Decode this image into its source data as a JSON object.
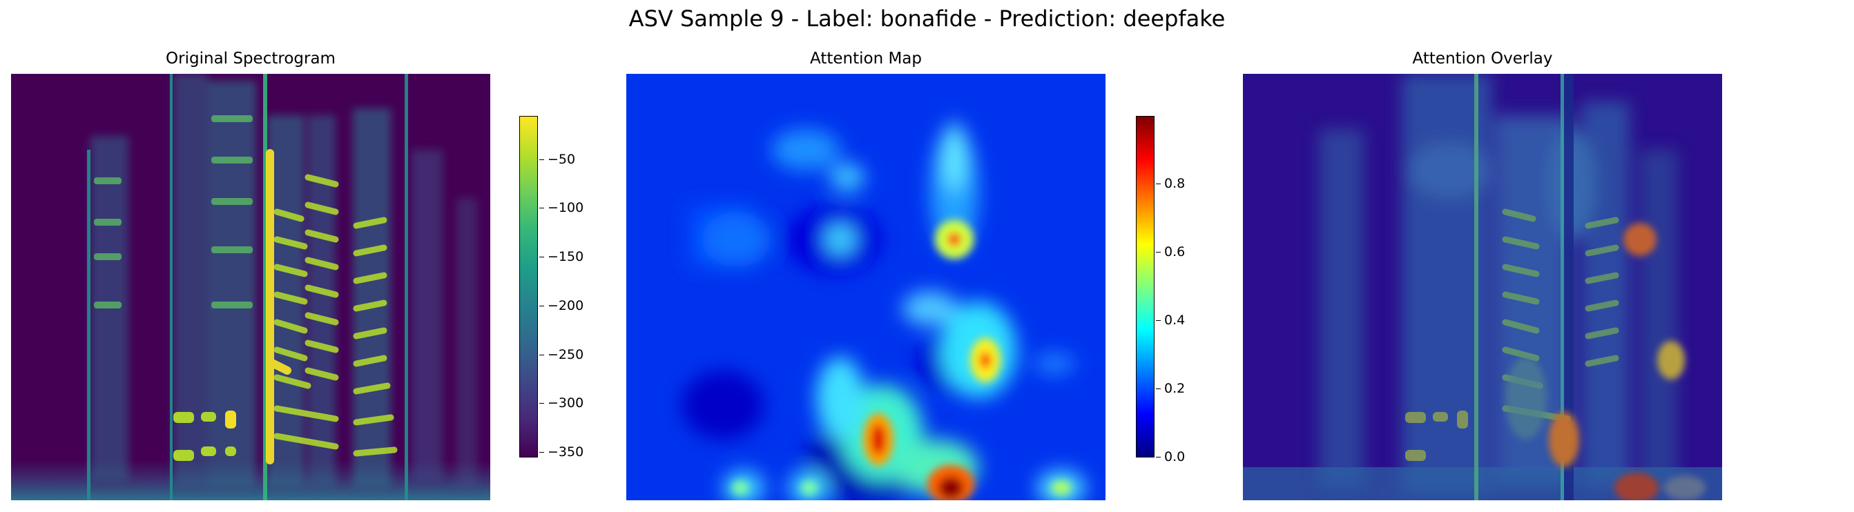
{
  "chart_data": [
    {
      "type": "heatmap",
      "title": "Original Spectrogram",
      "colormap": "viridis",
      "colorbar": {
        "ticks": [
          -50,
          -100,
          -150,
          -200,
          -250,
          -300,
          -350
        ],
        "range": [
          -355,
          -5
        ]
      }
    },
    {
      "type": "heatmap",
      "title": "Attention Map",
      "colormap": "jet",
      "colorbar": {
        "ticks": [
          0.8,
          0.6,
          0.4,
          0.2,
          0.0
        ],
        "range": [
          0.0,
          1.0
        ]
      }
    },
    {
      "type": "heatmap",
      "title": "Attention Overlay",
      "colormap": "jet over viridis"
    }
  ],
  "figure": {
    "suptitle": "ASV Sample 9 - Label: bonafide - Prediction: deepfake"
  },
  "colors": {
    "viridis_dark": "#440154",
    "viridis_mid": "#21918c",
    "viridis_light": "#fde725",
    "jet_low": "#00007f",
    "jet_high": "#7f0000"
  }
}
